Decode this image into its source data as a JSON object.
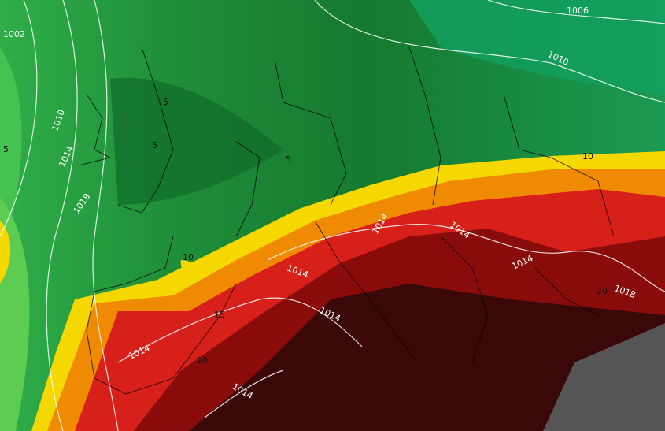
{
  "isobar_labels": [
    "1002",
    "1006",
    "1010",
    "1010",
    "1014",
    "1018",
    "1014",
    "1014",
    "1014",
    "1014",
    "1014",
    "1014",
    "1014",
    "1018"
  ],
  "temperature_labels": [
    "5",
    "5",
    "5",
    "5",
    "10",
    "10",
    "15",
    "20",
    "20"
  ]
}
